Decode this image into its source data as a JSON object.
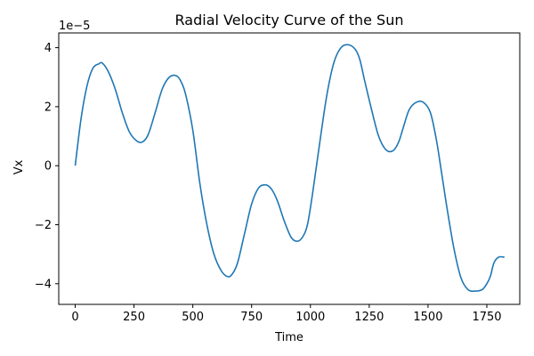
{
  "chart_data": {
    "type": "line",
    "title": "Radial Velocity Curve of the Sun",
    "xlabel": "Time",
    "ylabel": "Vx",
    "y_offset_label": "1e−5",
    "xlim": [
      -70,
      1890
    ],
    "ylim": [
      -4.7,
      4.5
    ],
    "x_ticks": [
      0,
      250,
      500,
      750,
      1000,
      1250,
      1500,
      1750
    ],
    "x_tick_labels": [
      "0",
      "250",
      "500",
      "750",
      "1000",
      "1250",
      "1500",
      "1750"
    ],
    "y_ticks": [
      -4,
      -2,
      0,
      2,
      4
    ],
    "y_tick_labels": [
      "−4",
      "−2",
      "0",
      "2",
      "4"
    ],
    "grid": false,
    "line_color": "#1f77b4",
    "series": [
      {
        "x": [
          0,
          25,
          50,
          75,
          100,
          115,
          140,
          170,
          200,
          230,
          260,
          285,
          310,
          340,
          370,
          400,
          430,
          450,
          470,
          500,
          530,
          560,
          590,
          620,
          645,
          665,
          690,
          720,
          750,
          780,
          810,
          835,
          860,
          890,
          920,
          950,
          975,
          990,
          1010,
          1040,
          1070,
          1100,
          1130,
          1160,
          1190,
          1210,
          1230,
          1260,
          1290,
          1320,
          1350,
          1375,
          1395,
          1420,
          1450,
          1480,
          1510,
          1535,
          1555,
          1580,
          1610,
          1640,
          1670,
          1700,
          1730,
          1750,
          1765,
          1780,
          1800,
          1825
        ],
        "y": [
          0.0,
          1.6,
          2.7,
          3.3,
          3.45,
          3.48,
          3.2,
          2.6,
          1.8,
          1.15,
          0.85,
          0.8,
          1.05,
          1.8,
          2.6,
          3.0,
          3.05,
          2.85,
          2.4,
          1.2,
          -0.6,
          -2.0,
          -3.0,
          -3.55,
          -3.75,
          -3.7,
          -3.3,
          -2.3,
          -1.3,
          -0.75,
          -0.65,
          -0.8,
          -1.2,
          -1.9,
          -2.45,
          -2.55,
          -2.3,
          -1.9,
          -0.9,
          0.8,
          2.4,
          3.5,
          4.0,
          4.1,
          3.95,
          3.6,
          2.9,
          1.9,
          1.0,
          0.55,
          0.5,
          0.8,
          1.3,
          1.9,
          2.15,
          2.15,
          1.8,
          0.9,
          -0.1,
          -1.4,
          -2.8,
          -3.8,
          -4.2,
          -4.25,
          -4.2,
          -4.0,
          -3.75,
          -3.3,
          -3.1,
          -3.1
        ]
      }
    ]
  }
}
